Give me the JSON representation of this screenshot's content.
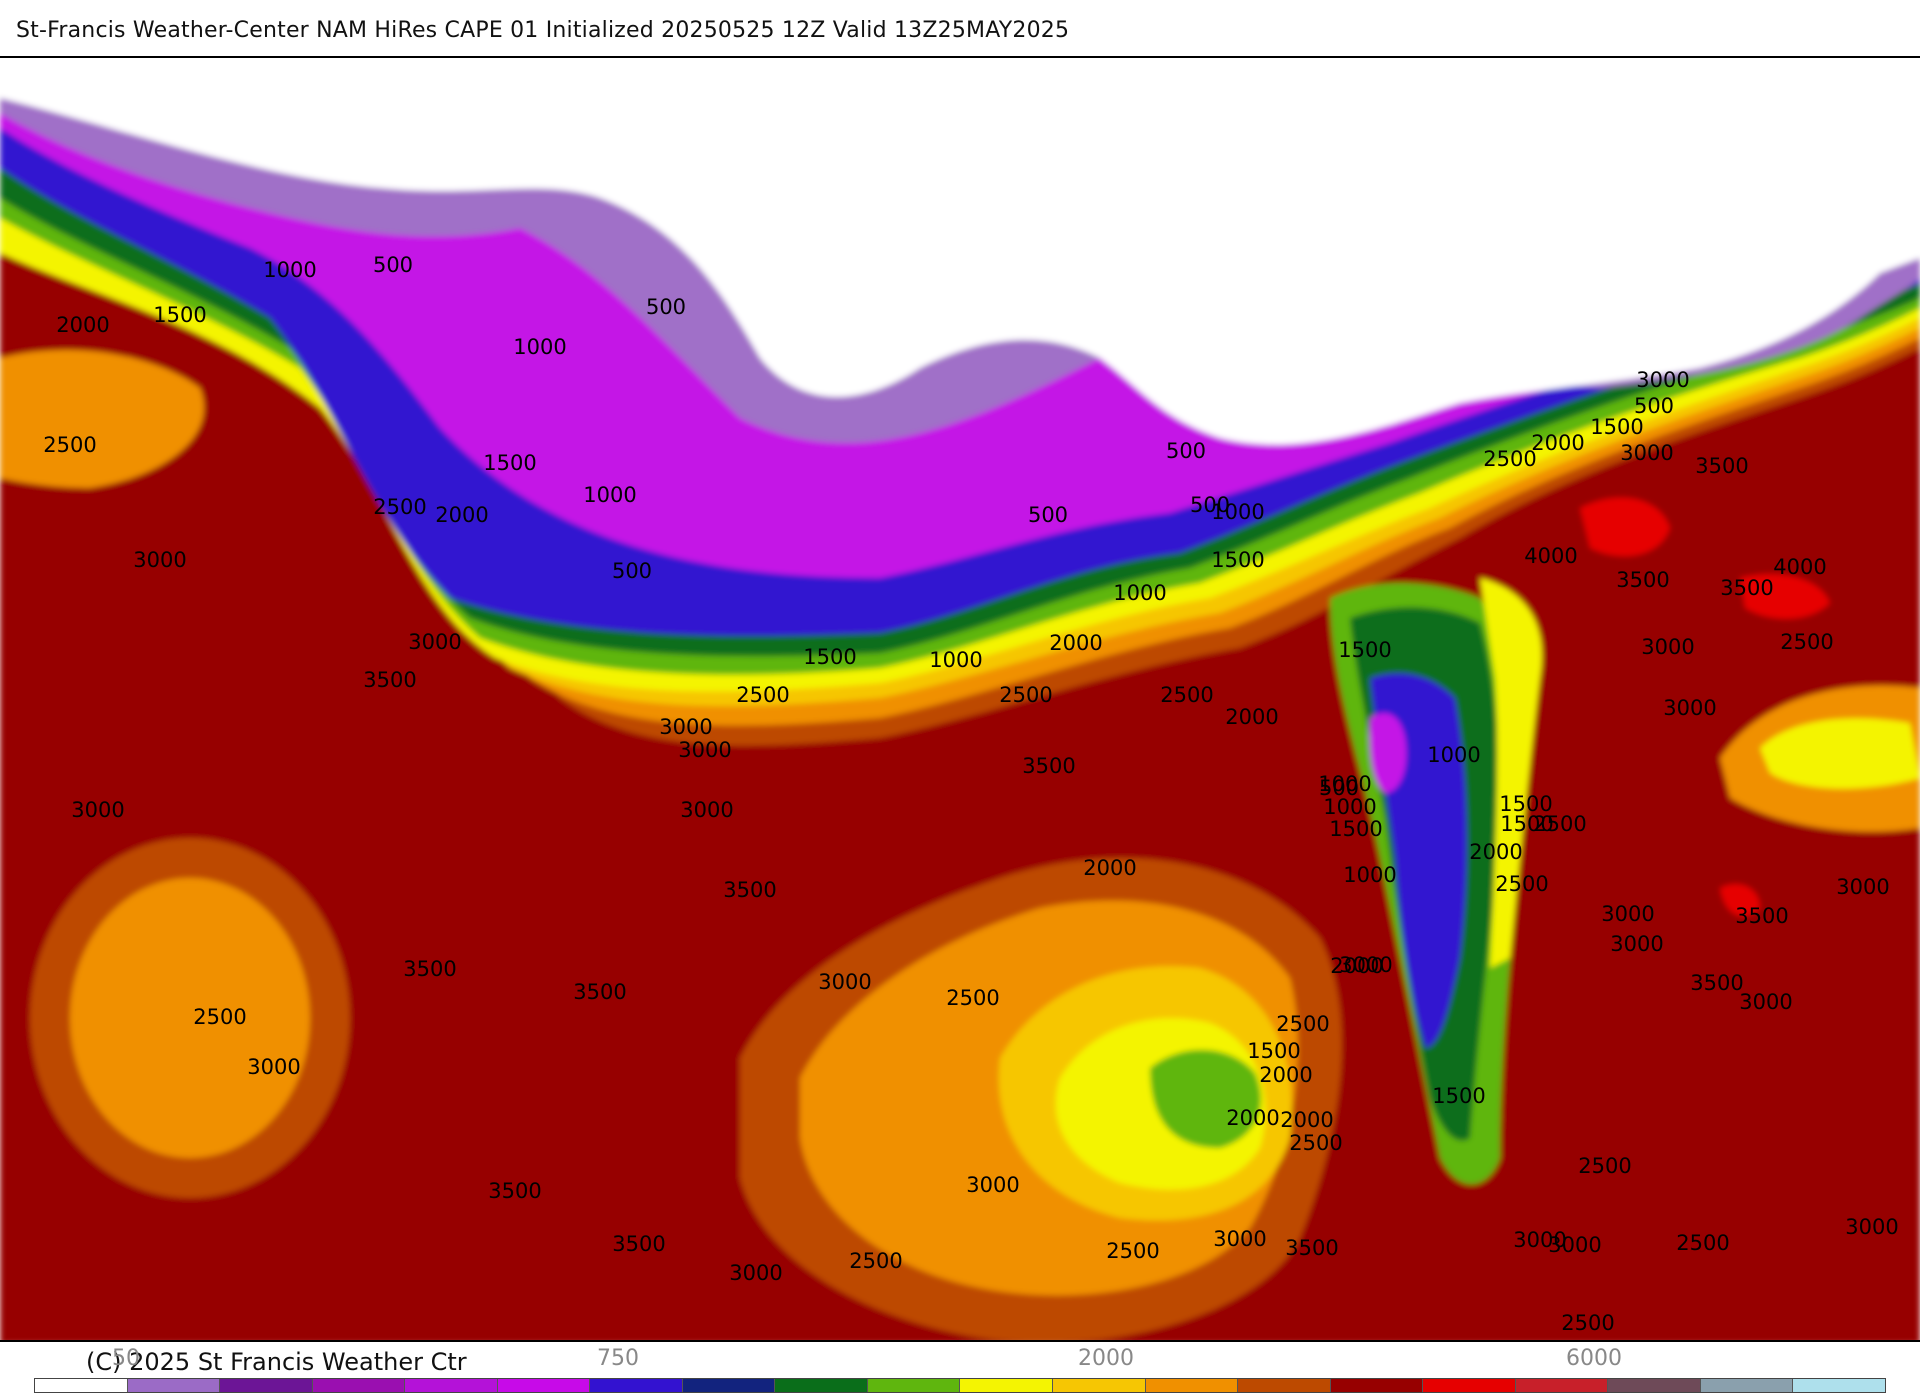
{
  "header": {
    "title": "St-Francis Weather-Center NAM HiRes CAPE  01 Initialized 20250525 12Z Valid 13Z25MAY2025"
  },
  "footer": {
    "copyright": "(C) 2025 St Francis Weather Ctr"
  },
  "colorbar": {
    "tick_labels": [
      "50",
      "750",
      "2000",
      "6000"
    ],
    "colors": [
      "#ffffff",
      "#9b6bc6",
      "#6c1596",
      "#9a0fb0",
      "#b412d8",
      "#c70ae8",
      "#3312d0",
      "#12237e",
      "#0a6e1a",
      "#5fb60e",
      "#f4f402",
      "#f6c603",
      "#f09000",
      "#bd4a00",
      "#970000",
      "#e60000",
      "#c8202a",
      "#6e4a58",
      "#8aa0ad",
      "#aee0ec"
    ]
  },
  "map": {
    "colors": {
      "background": "#ffffff",
      "purple_light": "#a070c8",
      "magenta": "#c412e6",
      "blue": "#3316d0",
      "green": "#0b6e1c",
      "light_green": "#5fb60e",
      "yellow": "#f4f402",
      "gold": "#f6c603",
      "orange": "#f09000",
      "brown_orange": "#bd4a00",
      "dark_red": "#970000",
      "red": "#e60000"
    },
    "contour_labels": [
      "1000",
      "500",
      "2000",
      "1500",
      "500",
      "1000",
      "2500",
      "1500",
      "1000",
      "2500",
      "2000",
      "500",
      "500",
      "3000",
      "500",
      "500",
      "3000",
      "1000",
      "3500",
      "1500",
      "2000",
      "1000",
      "2500",
      "2500",
      "3000",
      "3000",
      "3500",
      "3000",
      "3000",
      "3500",
      "2000",
      "3500",
      "3500",
      "2500",
      "3000",
      "3000",
      "2500",
      "3500",
      "3500",
      "3000",
      "2500",
      "3000",
      "3500",
      "2500",
      "3000",
      "2000",
      "2500",
      "2000",
      "1500",
      "1000",
      "500",
      "1000",
      "1500",
      "1500",
      "2500",
      "2000",
      "1500",
      "3000",
      "3500",
      "3000",
      "500",
      "1000",
      "1500",
      "2500",
      "2000",
      "3000",
      "4000",
      "3500",
      "4000",
      "3500",
      "2500",
      "3000",
      "3000",
      "1000",
      "1500",
      "2500",
      "2000",
      "1000",
      "1500",
      "2000",
      "2500",
      "3000",
      "3500",
      "3000",
      "3500",
      "3000",
      "3000",
      "2500",
      "3000",
      "2500",
      "3000",
      "2500",
      "3000",
      "2000",
      "2500",
      "1500",
      "2500"
    ]
  }
}
